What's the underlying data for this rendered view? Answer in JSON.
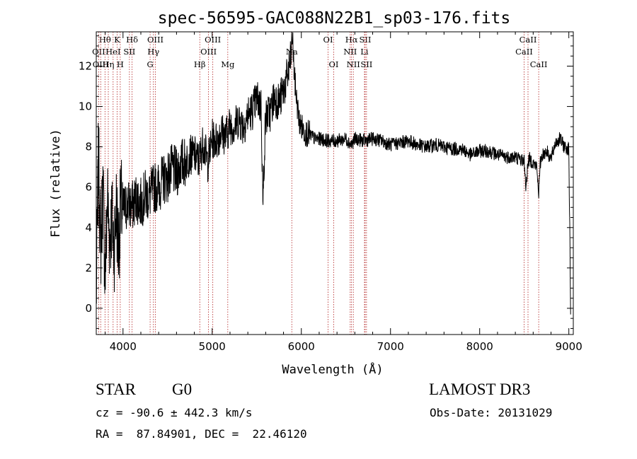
{
  "chart_data": {
    "type": "line",
    "title": "spec-56595-GAC088N22B1_sp03-176.fits",
    "xlabel": "Wavelength (Å)",
    "ylabel": "Flux (relative)",
    "xlim": [
      3700,
      9050
    ],
    "ylim": [
      -1.3,
      13.7
    ],
    "xticks": [
      4000,
      5000,
      6000,
      7000,
      8000,
      9000
    ],
    "yticks": [
      0,
      2,
      4,
      6,
      8,
      10,
      12
    ],
    "grid": false,
    "series": [
      {
        "name": "flux",
        "x": [
          3700,
          3725,
          3750,
          3775,
          3800,
          3825,
          3850,
          3875,
          3900,
          3925,
          3950,
          3975,
          4000,
          4050,
          4100,
          4150,
          4200,
          4250,
          4300,
          4350,
          4400,
          4450,
          4500,
          4550,
          4600,
          4650,
          4700,
          4750,
          4800,
          4850,
          4900,
          4950,
          5000,
          5050,
          5100,
          5150,
          5200,
          5250,
          5300,
          5350,
          5400,
          5450,
          5500,
          5550,
          5570,
          5580,
          5600,
          5650,
          5700,
          5750,
          5800,
          5850,
          5880,
          5900,
          5920,
          5950,
          5980,
          6000,
          6050,
          6100,
          6150,
          6200,
          6300,
          6400,
          6500,
          6563,
          6600,
          6700,
          6800,
          6900,
          7000,
          7100,
          7200,
          7300,
          7400,
          7500,
          7600,
          7700,
          7800,
          7900,
          8000,
          8100,
          8200,
          8300,
          8400,
          8450,
          8500,
          8520,
          8540,
          8560,
          8600,
          8640,
          8662,
          8680,
          8700,
          8750,
          8800,
          8850,
          8900,
          8950,
          9000,
          9020
        ],
        "y": [
          0.5,
          7.5,
          3.0,
          6.0,
          1.5,
          5.5,
          3.5,
          4.5,
          3.0,
          5.0,
          3.0,
          5.2,
          4.8,
          5.2,
          5.0,
          5.5,
          5.2,
          5.6,
          5.6,
          6.0,
          6.0,
          6.4,
          6.5,
          6.9,
          6.7,
          7.2,
          7.2,
          7.6,
          7.6,
          7.3,
          8.2,
          7.2,
          8.4,
          8.3,
          8.8,
          8.5,
          9.1,
          9.0,
          9.4,
          9.0,
          9.6,
          9.8,
          10.4,
          10.0,
          4.9,
          7.0,
          9.5,
          9.7,
          10.5,
          10.2,
          10.8,
          11.6,
          12.3,
          13.5,
          11.6,
          10.2,
          9.2,
          9.0,
          8.7,
          8.6,
          8.4,
          8.4,
          8.3,
          8.3,
          8.4,
          8.1,
          8.4,
          8.3,
          8.4,
          8.3,
          8.1,
          8.2,
          8.3,
          8.1,
          8.0,
          8.1,
          8.0,
          7.9,
          7.9,
          7.6,
          7.8,
          7.8,
          7.6,
          7.5,
          7.5,
          7.4,
          7.3,
          5.9,
          7.2,
          7.4,
          7.2,
          7.0,
          5.7,
          7.2,
          7.6,
          7.8,
          7.4,
          8.2,
          8.4,
          8.0,
          7.9,
          -0.1
        ]
      }
    ],
    "spectral_lines": [
      {
        "label": "Hθ",
        "wavelength": 3798,
        "row": 0
      },
      {
        "label": "OII",
        "wavelength": 3727,
        "row": 1
      },
      {
        "label": "OIII",
        "wavelength": 3750,
        "row": 2
      },
      {
        "label": "K",
        "wavelength": 3934,
        "row": 0
      },
      {
        "label": "HeI",
        "wavelength": 3889,
        "row": 1
      },
      {
        "label": "Hη",
        "wavelength": 3835,
        "row": 2
      },
      {
        "label": "SII",
        "wavelength": 4072,
        "row": 1
      },
      {
        "label": "H",
        "wavelength": 3969,
        "row": 2
      },
      {
        "label": "Hδ",
        "wavelength": 4102,
        "row": 0
      },
      {
        "label": "OIII",
        "wavelength": 4363,
        "row": 0
      },
      {
        "label": "Hγ",
        "wavelength": 4341,
        "row": 1
      },
      {
        "label": "G",
        "wavelength": 4304,
        "row": 2
      },
      {
        "label": "OIII",
        "wavelength": 5007,
        "row": 0
      },
      {
        "label": "OIII",
        "wavelength": 4959,
        "row": 1
      },
      {
        "label": "Hβ",
        "wavelength": 4861,
        "row": 2
      },
      {
        "label": "Mg",
        "wavelength": 5175,
        "row": 2
      },
      {
        "label": "Na",
        "wavelength": 5893,
        "row": 1
      },
      {
        "label": "OI",
        "wavelength": 6300,
        "row": 0
      },
      {
        "label": "OI",
        "wavelength": 6363,
        "row": 2
      },
      {
        "label": "Hα",
        "wavelength": 6563,
        "row": 0
      },
      {
        "label": "SII",
        "wavelength": 6716,
        "row": 0
      },
      {
        "label": "NII",
        "wavelength": 6548,
        "row": 1
      },
      {
        "label": "Li",
        "wavelength": 6708,
        "row": 1
      },
      {
        "label": "NII",
        "wavelength": 6583,
        "row": 2
      },
      {
        "label": "SII",
        "wavelength": 6731,
        "row": 2
      },
      {
        "label": "CaII",
        "wavelength": 8542,
        "row": 0
      },
      {
        "label": "CaII",
        "wavelength": 8498,
        "row": 1
      },
      {
        "label": "CaII",
        "wavelength": 8662,
        "row": 2
      }
    ]
  },
  "info": {
    "object_class": "STAR",
    "subclass": "G0",
    "survey": "LAMOST DR3",
    "redshift": "cz = -90.6 ± 442.3 km/s",
    "obs_date": "Obs-Date: 20131029",
    "coords": "RA =  87.84901, DEC =  22.46120"
  }
}
